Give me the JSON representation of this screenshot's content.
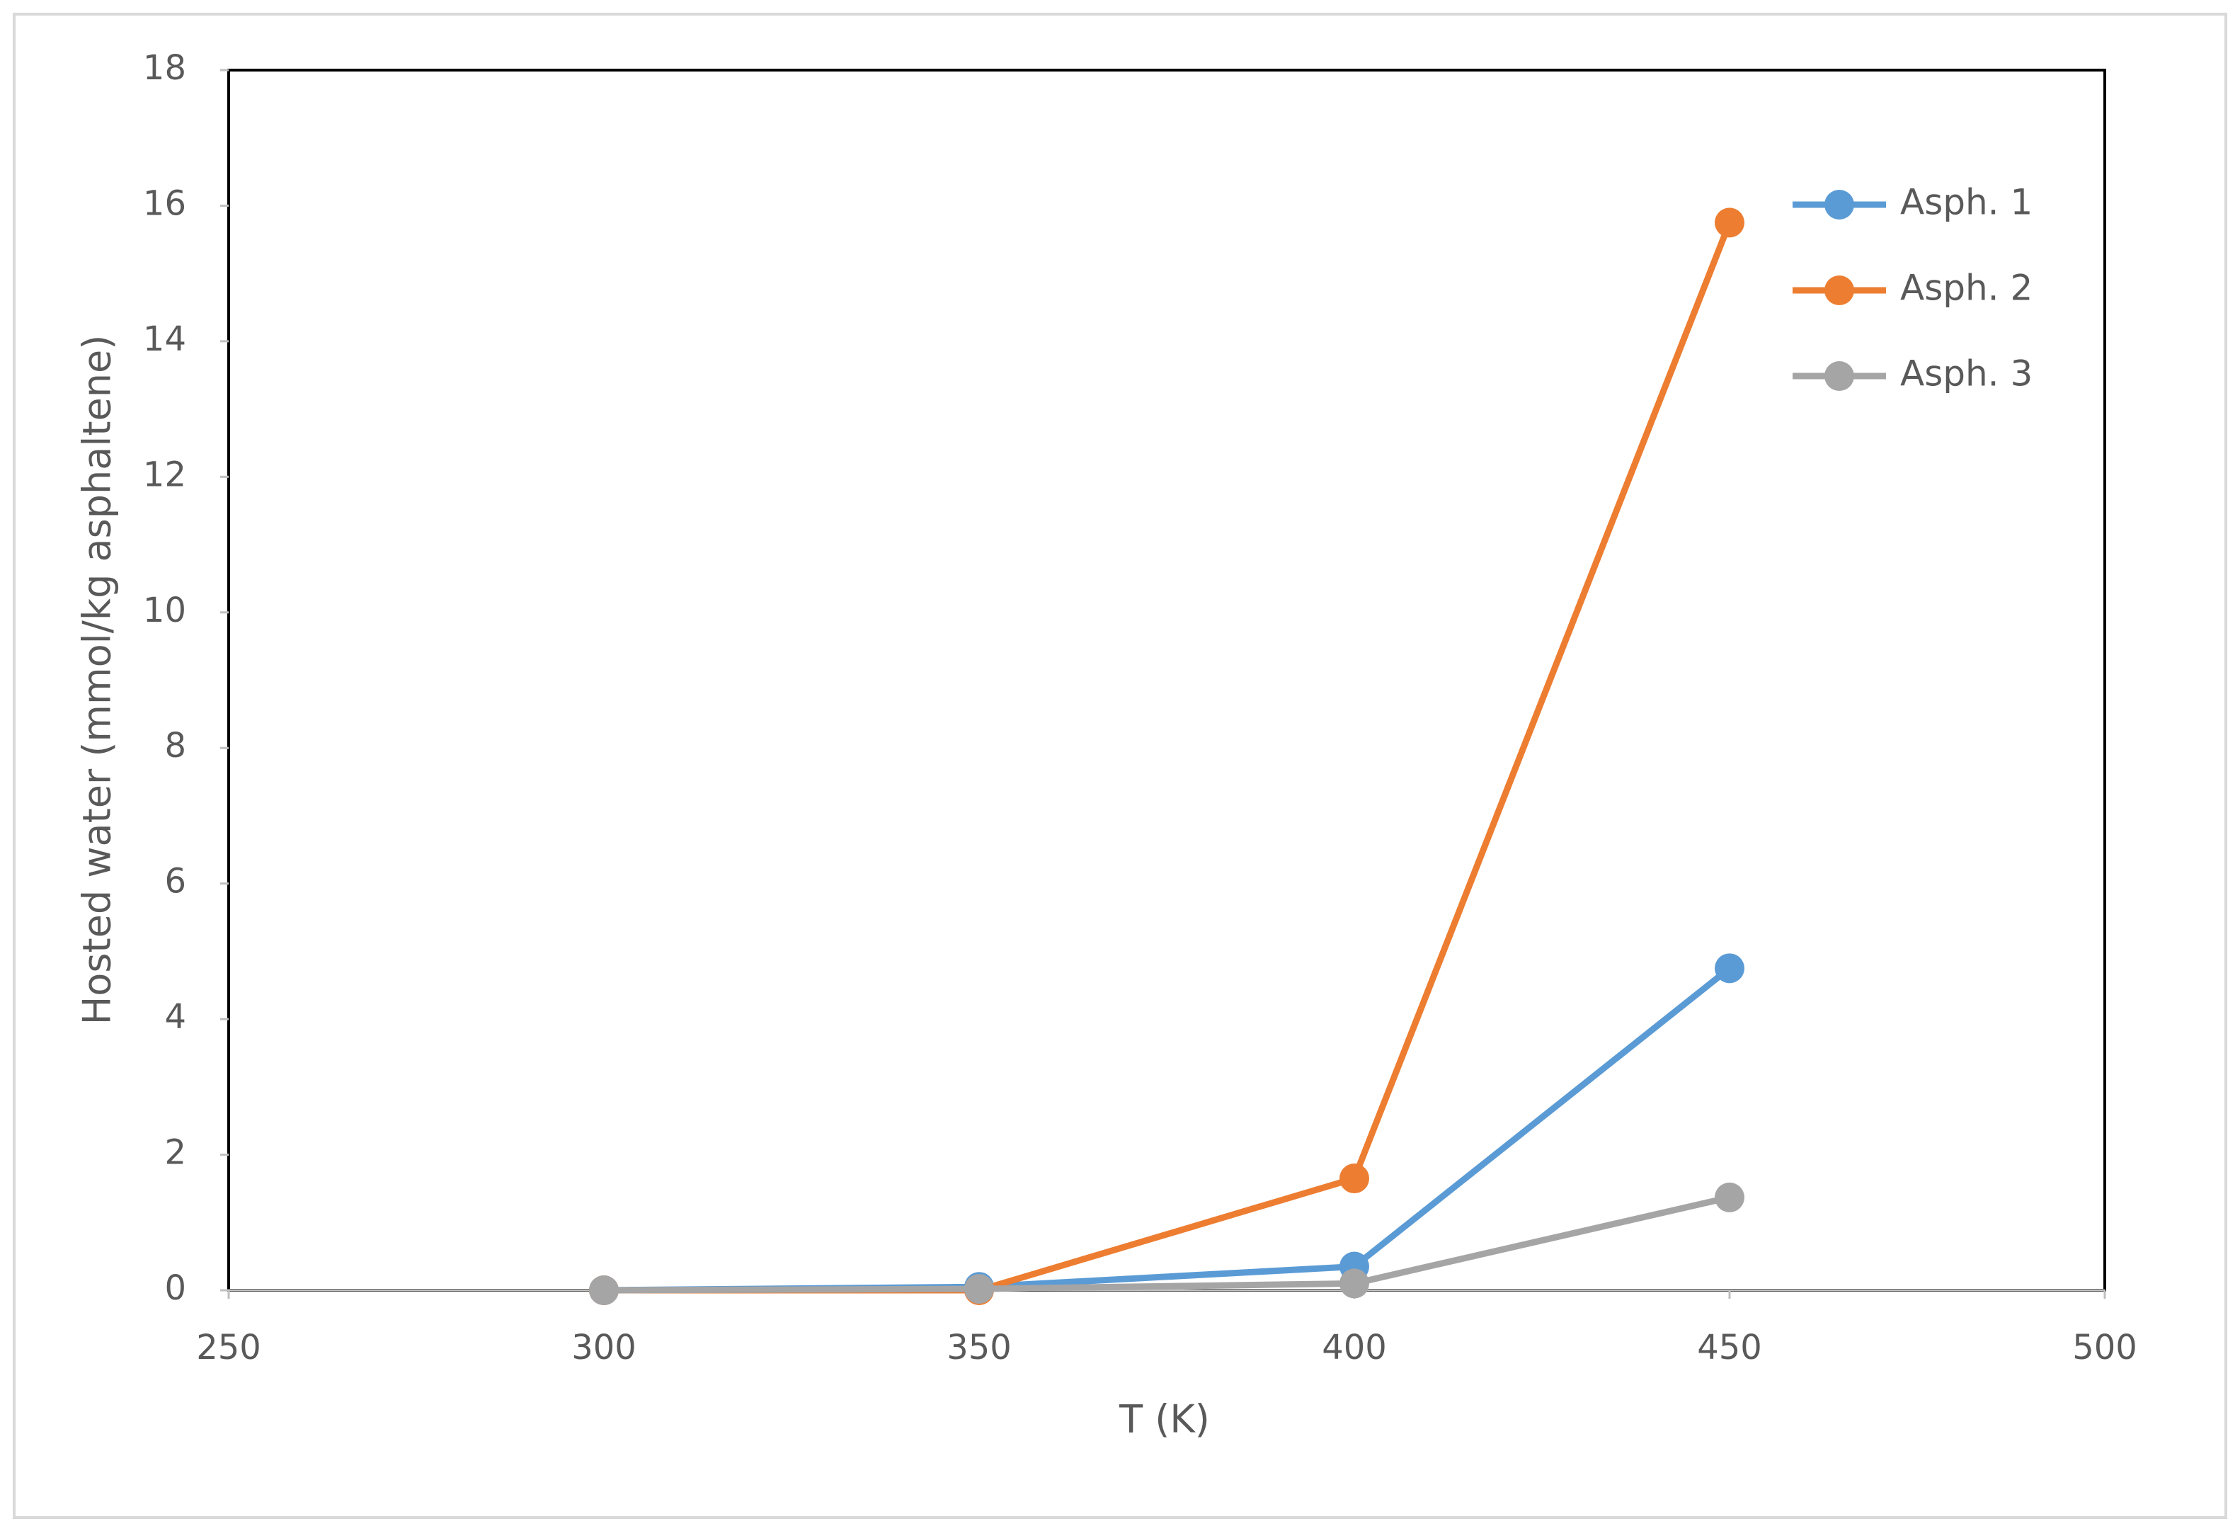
{
  "chart_data": {
    "type": "line",
    "x_label": "T (K)",
    "y_label": "Hosted water (mmol/kg asphaltene)",
    "x": [
      300,
      350,
      400,
      450
    ],
    "series": [
      {
        "name": "Asph. 1",
        "color": "#5b9bd5",
        "values": [
          0,
          0.05,
          0.35,
          4.75
        ]
      },
      {
        "name": "Asph. 2",
        "color": "#ed7d31",
        "values": [
          0,
          0,
          1.65,
          15.75
        ]
      },
      {
        "name": "Asph. 3",
        "color": "#a5a5a5",
        "values": [
          0,
          0.02,
          0.1,
          1.37
        ]
      }
    ],
    "xlim": [
      250,
      500
    ],
    "xticks": [
      250,
      300,
      350,
      400,
      450,
      500
    ],
    "ylim": [
      0,
      18
    ],
    "yticks": [
      0,
      2,
      4,
      6,
      8,
      10,
      12,
      14,
      16,
      18
    ],
    "legend": "right"
  }
}
